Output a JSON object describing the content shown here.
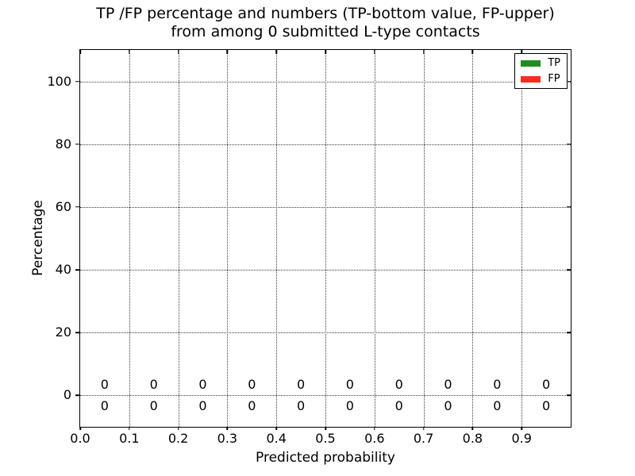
{
  "chart_data": {
    "type": "bar",
    "title_line1": "TP /FP percentage and numbers (TP-bottom value, FP-upper)",
    "title_line2": "from among 0 submitted L-type contacts",
    "xlabel": "Predicted probability",
    "ylabel": "Percentage",
    "xlim": [
      0.0,
      1.0
    ],
    "ylim": [
      -10,
      110
    ],
    "xtick_values": [
      0.0,
      0.1,
      0.2,
      0.3,
      0.4,
      0.5,
      0.6,
      0.7,
      0.8,
      0.9
    ],
    "xtick_labels": [
      "0.0",
      "0.1",
      "0.2",
      "0.3",
      "0.4",
      "0.5",
      "0.6",
      "0.7",
      "0.8",
      "0.9"
    ],
    "ytick_values": [
      0,
      20,
      40,
      60,
      80,
      100
    ],
    "ytick_labels": [
      "0",
      "20",
      "40",
      "60",
      "80",
      "100"
    ],
    "grid": "dotted",
    "legend_position": "upper-right",
    "bin_centers": [
      0.05,
      0.15,
      0.25,
      0.35,
      0.45,
      0.55,
      0.65,
      0.75,
      0.85,
      0.95
    ],
    "series": [
      {
        "name": "TP",
        "color": "#228b22",
        "values": [
          0,
          0,
          0,
          0,
          0,
          0,
          0,
          0,
          0,
          0
        ],
        "label_position": "below-zero-line",
        "label_y_value": -3.5
      },
      {
        "name": "FP",
        "color": "#f62d1f",
        "values": [
          0,
          0,
          0,
          0,
          0,
          0,
          0,
          0,
          0,
          0
        ],
        "label_position": "above-zero-line",
        "label_y_value": 3.5
      }
    ]
  }
}
